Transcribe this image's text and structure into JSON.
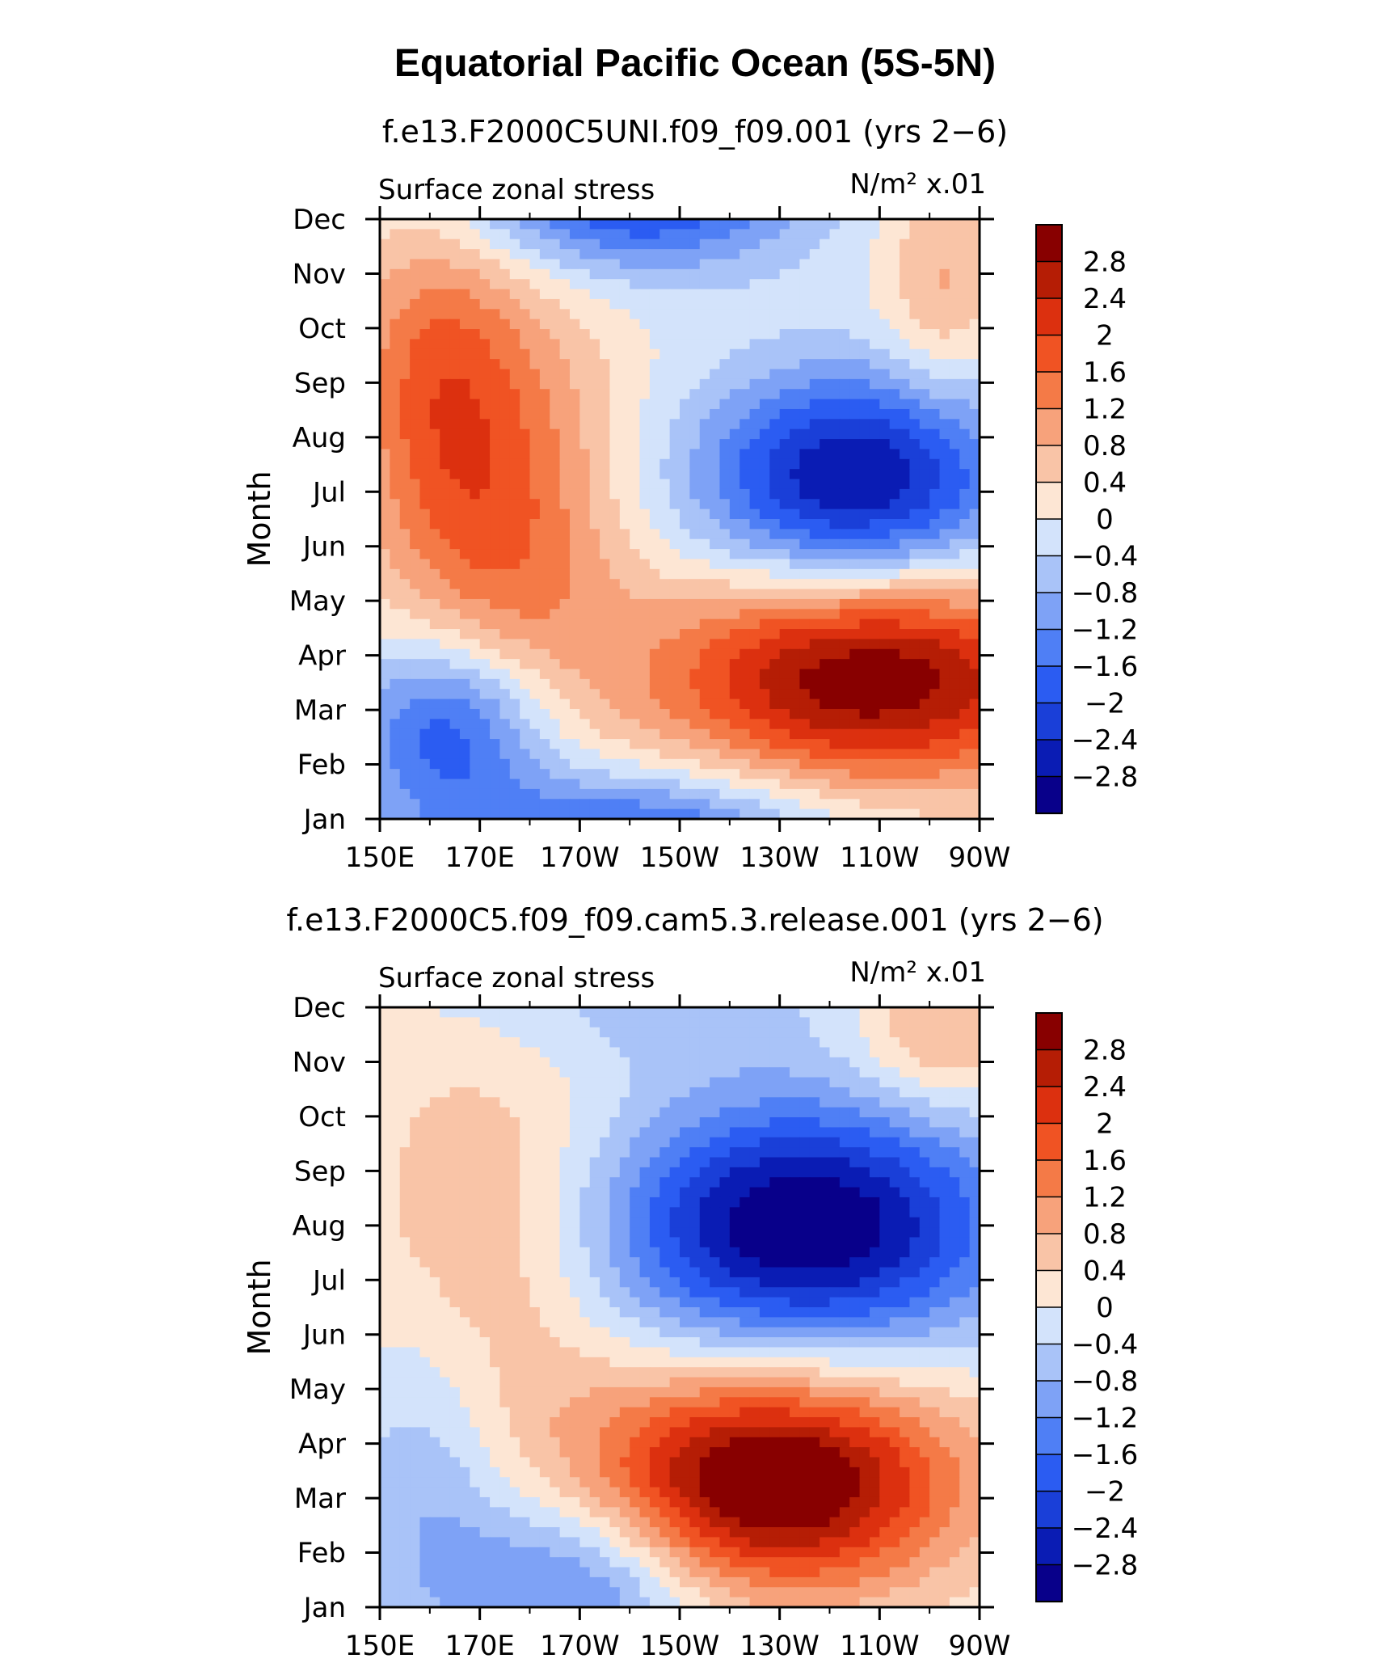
{
  "page": {
    "title": "Equatorial Pacific Ocean (5S-5N)"
  },
  "chart_data": [
    {
      "type": "heatmap",
      "title": "f.e13.F2000C5UNI.f09_f09.001 (yrs 2−6)",
      "variable": "Surface zonal stress",
      "units": "N/m² x.01",
      "xlabel": "",
      "ylabel": "Month",
      "x_ticks": [
        "150E",
        "170E",
        "170W",
        "150W",
        "130W",
        "110W",
        "90W"
      ],
      "y_ticks": [
        "Jan",
        "Feb",
        "Mar",
        "Apr",
        "May",
        "Jun",
        "Jul",
        "Aug",
        "Sep",
        "Oct",
        "Nov",
        "Dec"
      ],
      "xlim": [
        150,
        270
      ],
      "ylim": [
        1,
        12
      ],
      "legend_position": "right",
      "colorbar_levels": [
        "2.8",
        "2.4",
        "2",
        "1.6",
        "1.2",
        "0.8",
        "0.4",
        "0",
        "−0.4",
        "−0.8",
        "−1.2",
        "−1.6",
        "−2",
        "−2.4",
        "−2.8"
      ],
      "features": [
        {
          "x": 248,
          "y": 3.6,
          "amp": 3.2,
          "sx": 30,
          "sy": 1.4,
          "rot": -0.45
        },
        {
          "x": 175,
          "y": 6.5,
          "amp": 1.6,
          "sx": 16,
          "sy": 3.0,
          "rot": -0.35
        },
        {
          "x": 160,
          "y": 9.2,
          "amp": 1.2,
          "sx": 12,
          "sy": 2.2,
          "rot": 0.0
        },
        {
          "x": 262,
          "y": 10.8,
          "amp": 0.9,
          "sx": 8,
          "sy": 1.5,
          "rot": 0.0
        },
        {
          "x": 200,
          "y": 12.5,
          "amp": -2.3,
          "sx": 24,
          "sy": 1.0,
          "rot": 0.0
        },
        {
          "x": 245,
          "y": 7.2,
          "amp": -2.9,
          "sx": 22,
          "sy": 1.4,
          "rot": -0.25
        },
        {
          "x": 165,
          "y": 2.7,
          "amp": -2.2,
          "sx": 14,
          "sy": 1.2,
          "rot": 0.0
        },
        {
          "x": 200,
          "y": 0.6,
          "amp": -2.0,
          "sx": 28,
          "sy": 0.9,
          "rot": 0.0
        }
      ]
    },
    {
      "type": "heatmap",
      "title": "f.e13.F2000C5.f09_f09.cam5.3.release.001 (yrs 2−6)",
      "variable": "Surface zonal stress",
      "units": "N/m² x.01",
      "xlabel": "",
      "ylabel": "Month",
      "x_ticks": [
        "150E",
        "170E",
        "170W",
        "150W",
        "130W",
        "110W",
        "90W"
      ],
      "y_ticks": [
        "Jan",
        "Feb",
        "Mar",
        "Apr",
        "May",
        "Jun",
        "Jul",
        "Aug",
        "Sep",
        "Oct",
        "Nov",
        "Dec"
      ],
      "xlim": [
        150,
        270
      ],
      "ylim": [
        1,
        12
      ],
      "legend_position": "right",
      "colorbar_levels": [
        "2.8",
        "2.4",
        "2",
        "1.6",
        "1.2",
        "0.8",
        "0.4",
        "0",
        "−0.4",
        "−0.8",
        "−1.2",
        "−1.6",
        "−2",
        "−2.4",
        "−2.8"
      ],
      "features": [
        {
          "x": 228,
          "y": 3.3,
          "amp": 3.6,
          "sx": 26,
          "sy": 1.4,
          "rot": -0.4
        },
        {
          "x": 172,
          "y": 7.5,
          "amp": 0.9,
          "sx": 18,
          "sy": 3.0,
          "rot": 0.0
        },
        {
          "x": 262,
          "y": 11.5,
          "amp": 1.0,
          "sx": 12,
          "sy": 1.0,
          "rot": 0.0
        },
        {
          "x": 235,
          "y": 8.0,
          "amp": -3.3,
          "sx": 28,
          "sy": 1.6,
          "rot": -0.4
        },
        {
          "x": 190,
          "y": 1.5,
          "amp": -1.6,
          "sx": 18,
          "sy": 1.3,
          "rot": 0.0
        },
        {
          "x": 160,
          "y": 3.5,
          "amp": -0.9,
          "sx": 12,
          "sy": 2.2,
          "rot": 0.0
        },
        {
          "x": 200,
          "y": 12.2,
          "amp": -0.6,
          "sx": 30,
          "sy": 1.0,
          "rot": 0.0
        }
      ]
    }
  ],
  "colors": {
    "levels": [
      "#08008a",
      "#0a1cb4",
      "#1a3fd8",
      "#2b5cf2",
      "#4f7ff5",
      "#7ea2f6",
      "#a9c3f8",
      "#d3e3fb",
      "#fde6d4",
      "#f9c4a7",
      "#f7a27b",
      "#f47a47",
      "#f05323",
      "#dc300f",
      "#b51d05",
      "#880000"
    ]
  }
}
